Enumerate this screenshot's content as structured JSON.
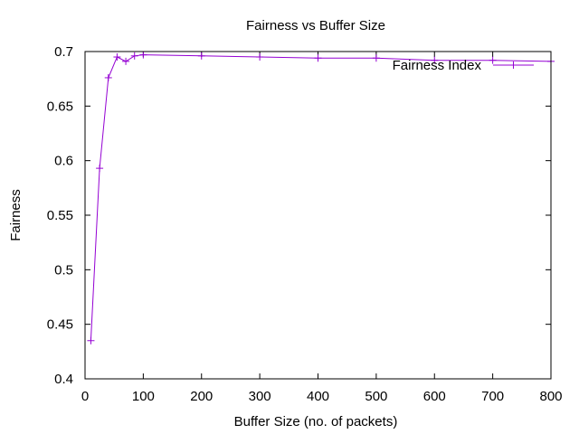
{
  "chart_data": {
    "type": "line",
    "title": "Fairness vs Buffer Size",
    "xlabel": "Buffer Size (no. of packets)",
    "ylabel": "Fairness",
    "xlim": [
      0,
      800
    ],
    "ylim": [
      0.4,
      0.7
    ],
    "xticks": [
      0,
      100,
      200,
      300,
      400,
      500,
      600,
      700,
      800
    ],
    "yticks": [
      0.4,
      0.45,
      0.5,
      0.55,
      0.6,
      0.65,
      0.7
    ],
    "grid": false,
    "legend_position": "top-right",
    "series": [
      {
        "name": "Fairness Index",
        "color": "#9400d3",
        "marker": "plus",
        "x": [
          10,
          25,
          40,
          55,
          70,
          85,
          100,
          200,
          300,
          400,
          500,
          600,
          700,
          800
        ],
        "y": [
          0.435,
          0.593,
          0.676,
          0.695,
          0.691,
          0.696,
          0.697,
          0.696,
          0.695,
          0.694,
          0.694,
          0.692,
          0.692,
          0.691
        ]
      }
    ]
  }
}
